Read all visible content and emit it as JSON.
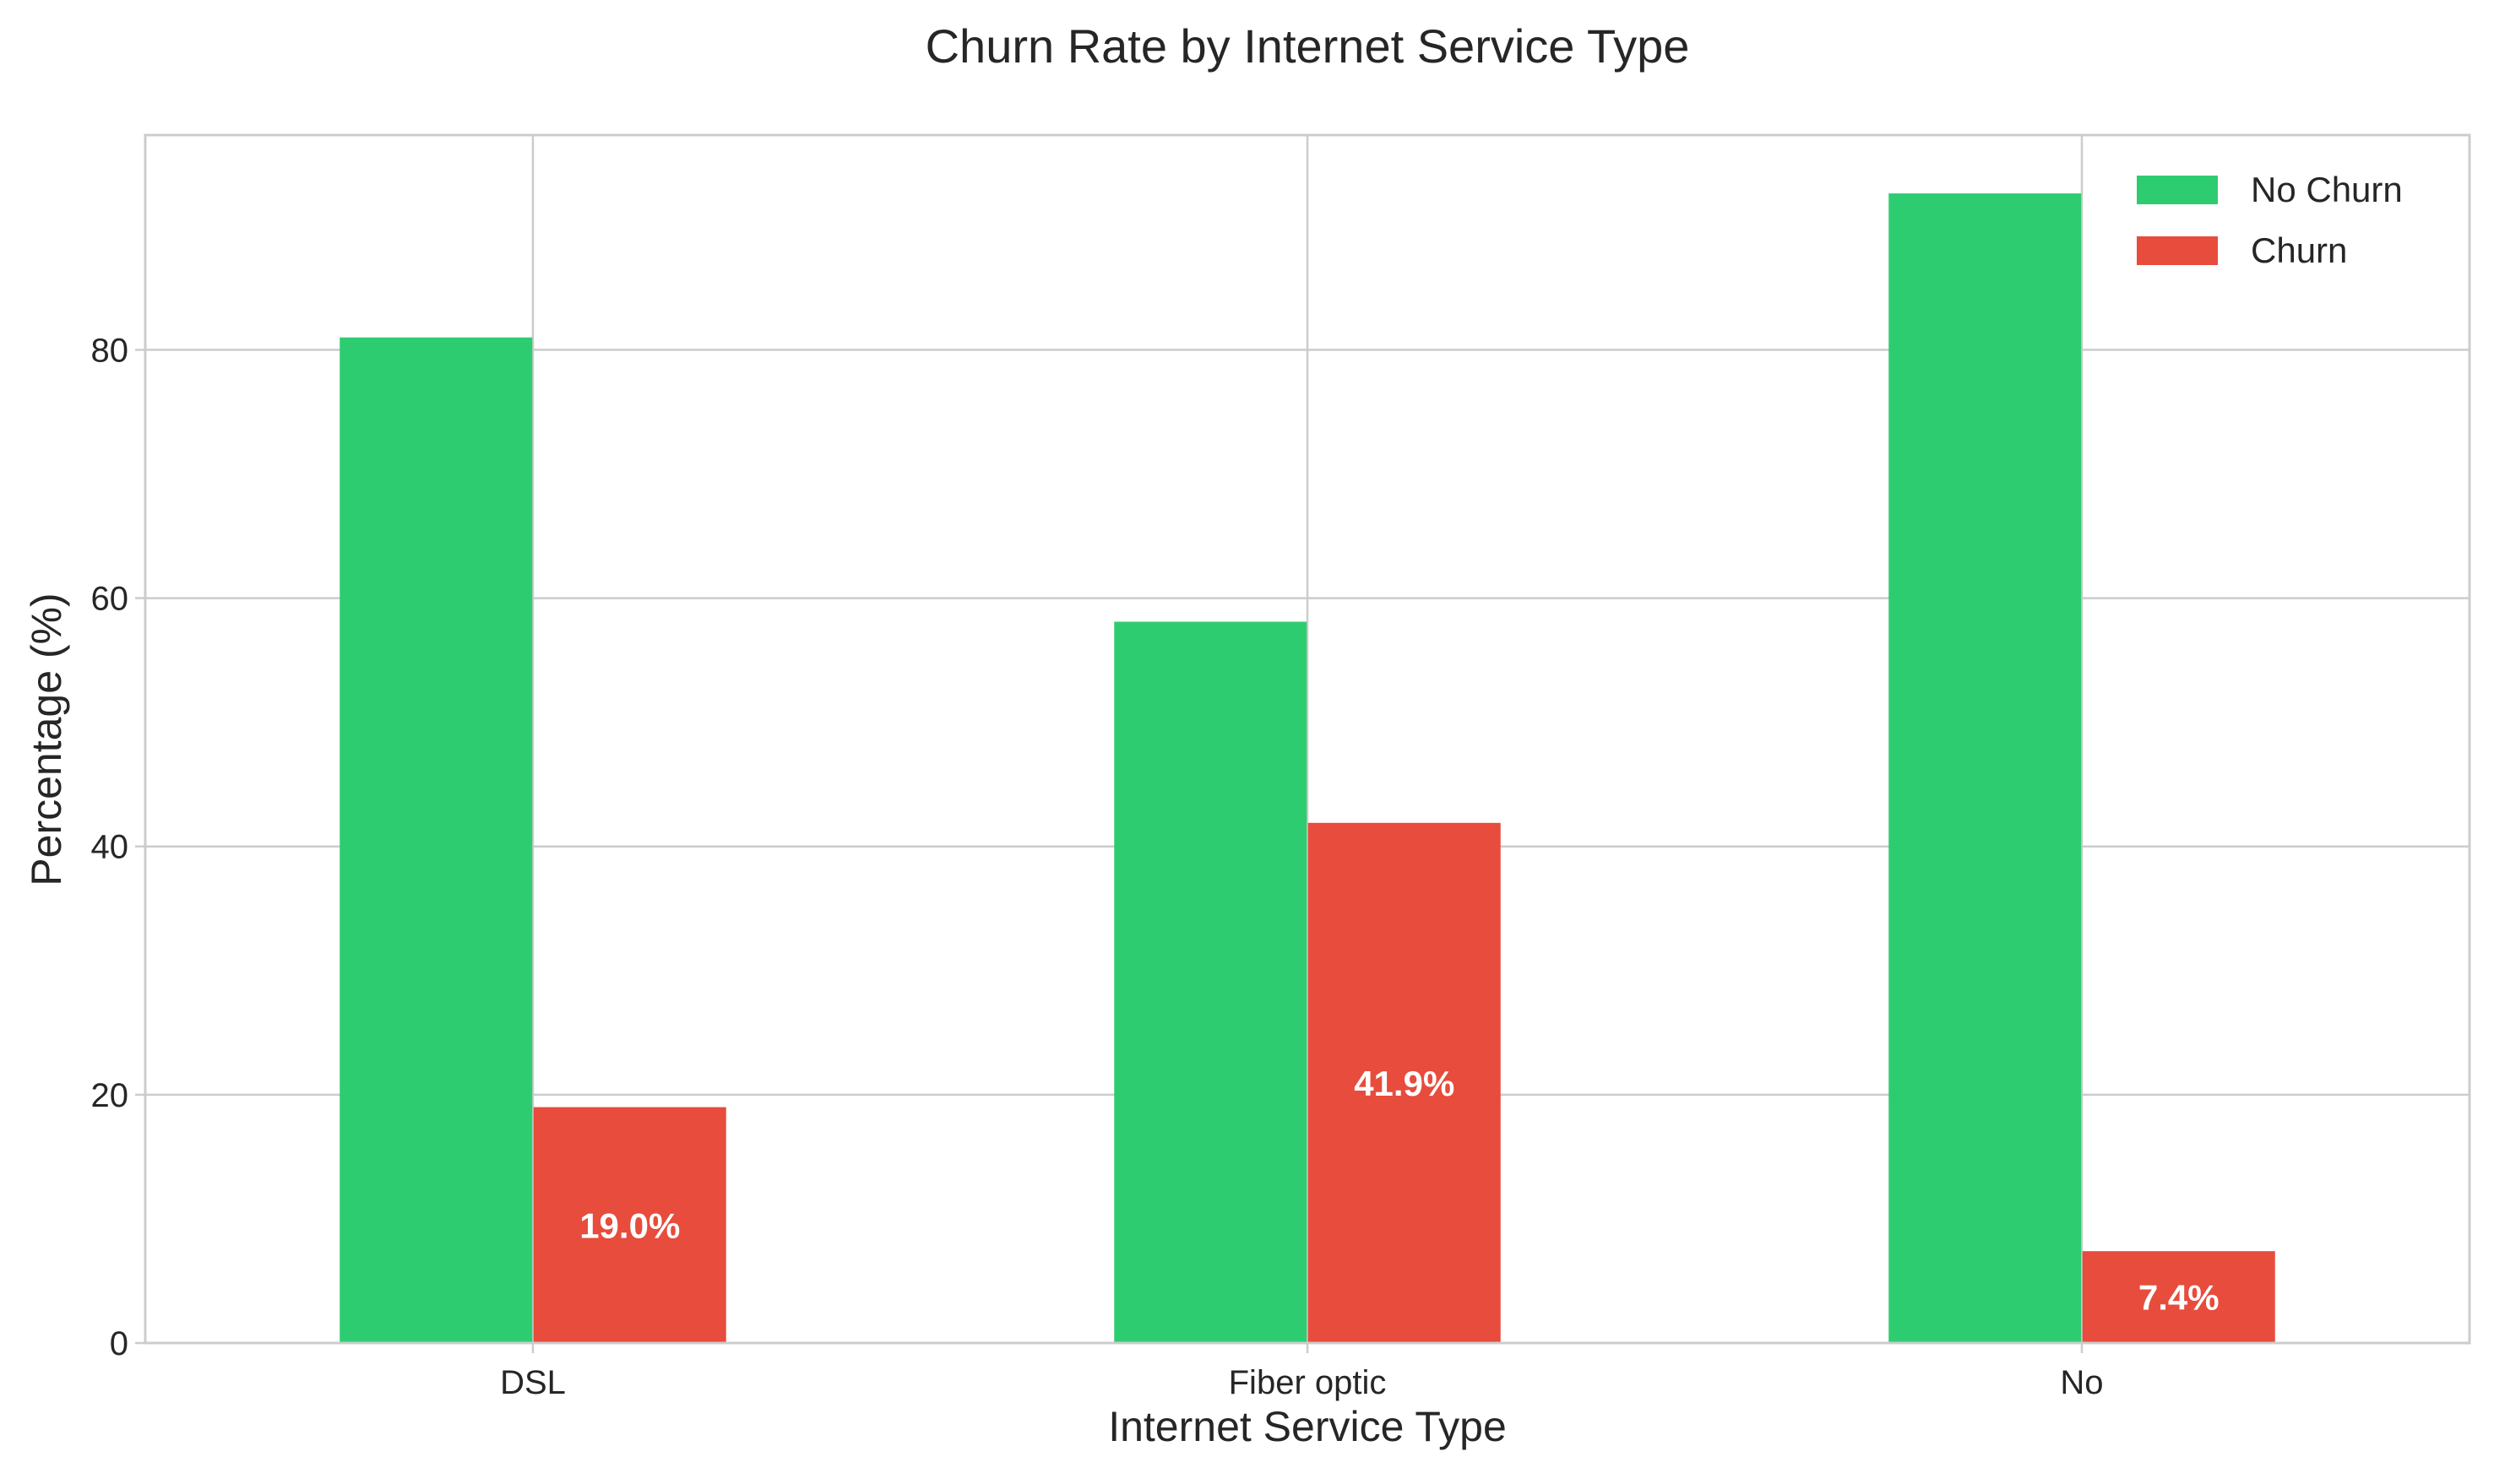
{
  "chart_data": {
    "type": "bar",
    "title": "Churn Rate by Internet Service Type",
    "xlabel": "Internet Service Type",
    "ylabel": "Percentage (%)",
    "categories": [
      "DSL",
      "Fiber optic",
      "No"
    ],
    "series": [
      {
        "name": "No Churn",
        "color": "#2ecc71",
        "values": [
          81.0,
          58.1,
          92.6
        ]
      },
      {
        "name": "Churn",
        "color": "#e74c3c",
        "values": [
          19.0,
          41.9,
          7.4
        ],
        "data_labels": [
          "19.0%",
          "41.9%",
          "7.4%"
        ]
      }
    ],
    "ylim": [
      0,
      97.3
    ],
    "yticks": [
      0,
      20,
      40,
      60,
      80
    ],
    "grid": true,
    "legend_position": "top-right"
  }
}
